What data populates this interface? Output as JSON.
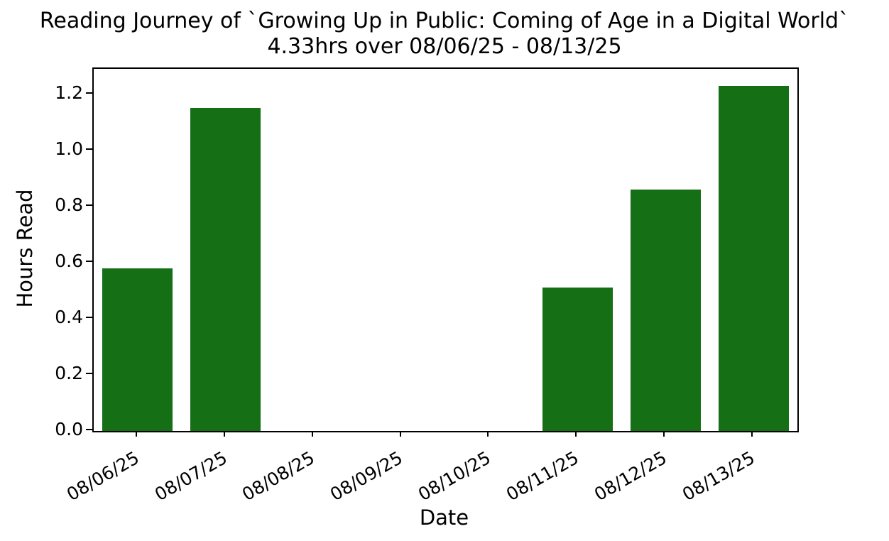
{
  "chart_data": {
    "type": "bar",
    "title": "Reading Journey of `Growing Up in Public: Coming of Age in a Digital World`",
    "subtitle": "4.33hrs over 08/06/25 - 08/13/25",
    "total_hours_shown": "4.33",
    "date_range_shown": "08/06/25 - 08/13/25",
    "categories": [
      "08/06/25",
      "08/07/25",
      "08/08/25",
      "08/09/25",
      "08/10/25",
      "08/11/25",
      "08/12/25",
      "08/13/25"
    ],
    "values": [
      0.58,
      1.15,
      0,
      0,
      0,
      0.51,
      0.86,
      1.23
    ],
    "xlabel": "Date",
    "ylabel": "Hours Read",
    "ylim": [
      0,
      1.29
    ],
    "yticks": [
      "0.0",
      "0.2",
      "0.4",
      "0.6",
      "0.8",
      "1.0",
      "1.2"
    ],
    "x_tick_rotation_deg": 30,
    "grid": false,
    "legend_position": "none",
    "bar_color": "#146f15",
    "axis_color": "#000000",
    "text_color": "#000000",
    "background_color": "#ffffff"
  }
}
